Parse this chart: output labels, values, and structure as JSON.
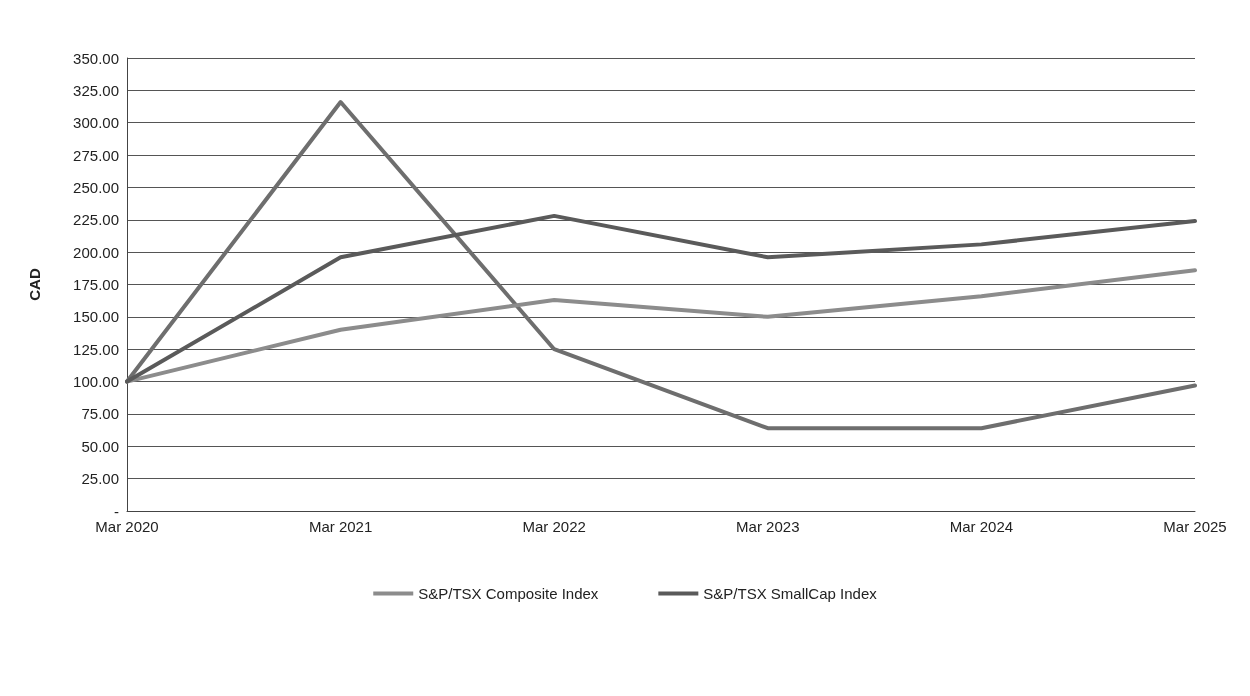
{
  "chart_data": {
    "type": "line",
    "ylabel": "CAD",
    "categories": [
      "Mar 2020",
      "Mar 2021",
      "Mar 2022",
      "Mar 2023",
      "Mar 2024",
      "Mar 2025"
    ],
    "series": [
      {
        "color": "#6e6e6e",
        "values": [
          100,
          316,
          125,
          64,
          64,
          97
        ]
      },
      {
        "name": "S&P/TSX Composite Index",
        "color": "#8c8c8c",
        "values": [
          100,
          140,
          163,
          150,
          166,
          186
        ]
      },
      {
        "name": "S&P/TSX SmallCap Index",
        "color": "#5a5a5a",
        "values": [
          100,
          196,
          228,
          196,
          206,
          224
        ]
      }
    ],
    "ylim": [
      0,
      350
    ],
    "yticks": [
      {
        "value": 0,
        "label": "-"
      },
      {
        "value": 25,
        "label": "25.00"
      },
      {
        "value": 50,
        "label": "50.00"
      },
      {
        "value": 75,
        "label": "75.00"
      },
      {
        "value": 100,
        "label": "100.00"
      },
      {
        "value": 125,
        "label": "125.00"
      },
      {
        "value": 150,
        "label": "150.00"
      },
      {
        "value": 175,
        "label": "175.00"
      },
      {
        "value": 200,
        "label": "200.00"
      },
      {
        "value": 225,
        "label": "225.00"
      },
      {
        "value": 250,
        "label": "250.00"
      },
      {
        "value": 275,
        "label": "275.00"
      },
      {
        "value": 300,
        "label": "300.00"
      },
      {
        "value": 325,
        "label": "325.00"
      },
      {
        "value": 350,
        "label": "350.00"
      }
    ],
    "grid": "y",
    "legend": "bottom",
    "marker": "none",
    "line_style": "solid"
  }
}
